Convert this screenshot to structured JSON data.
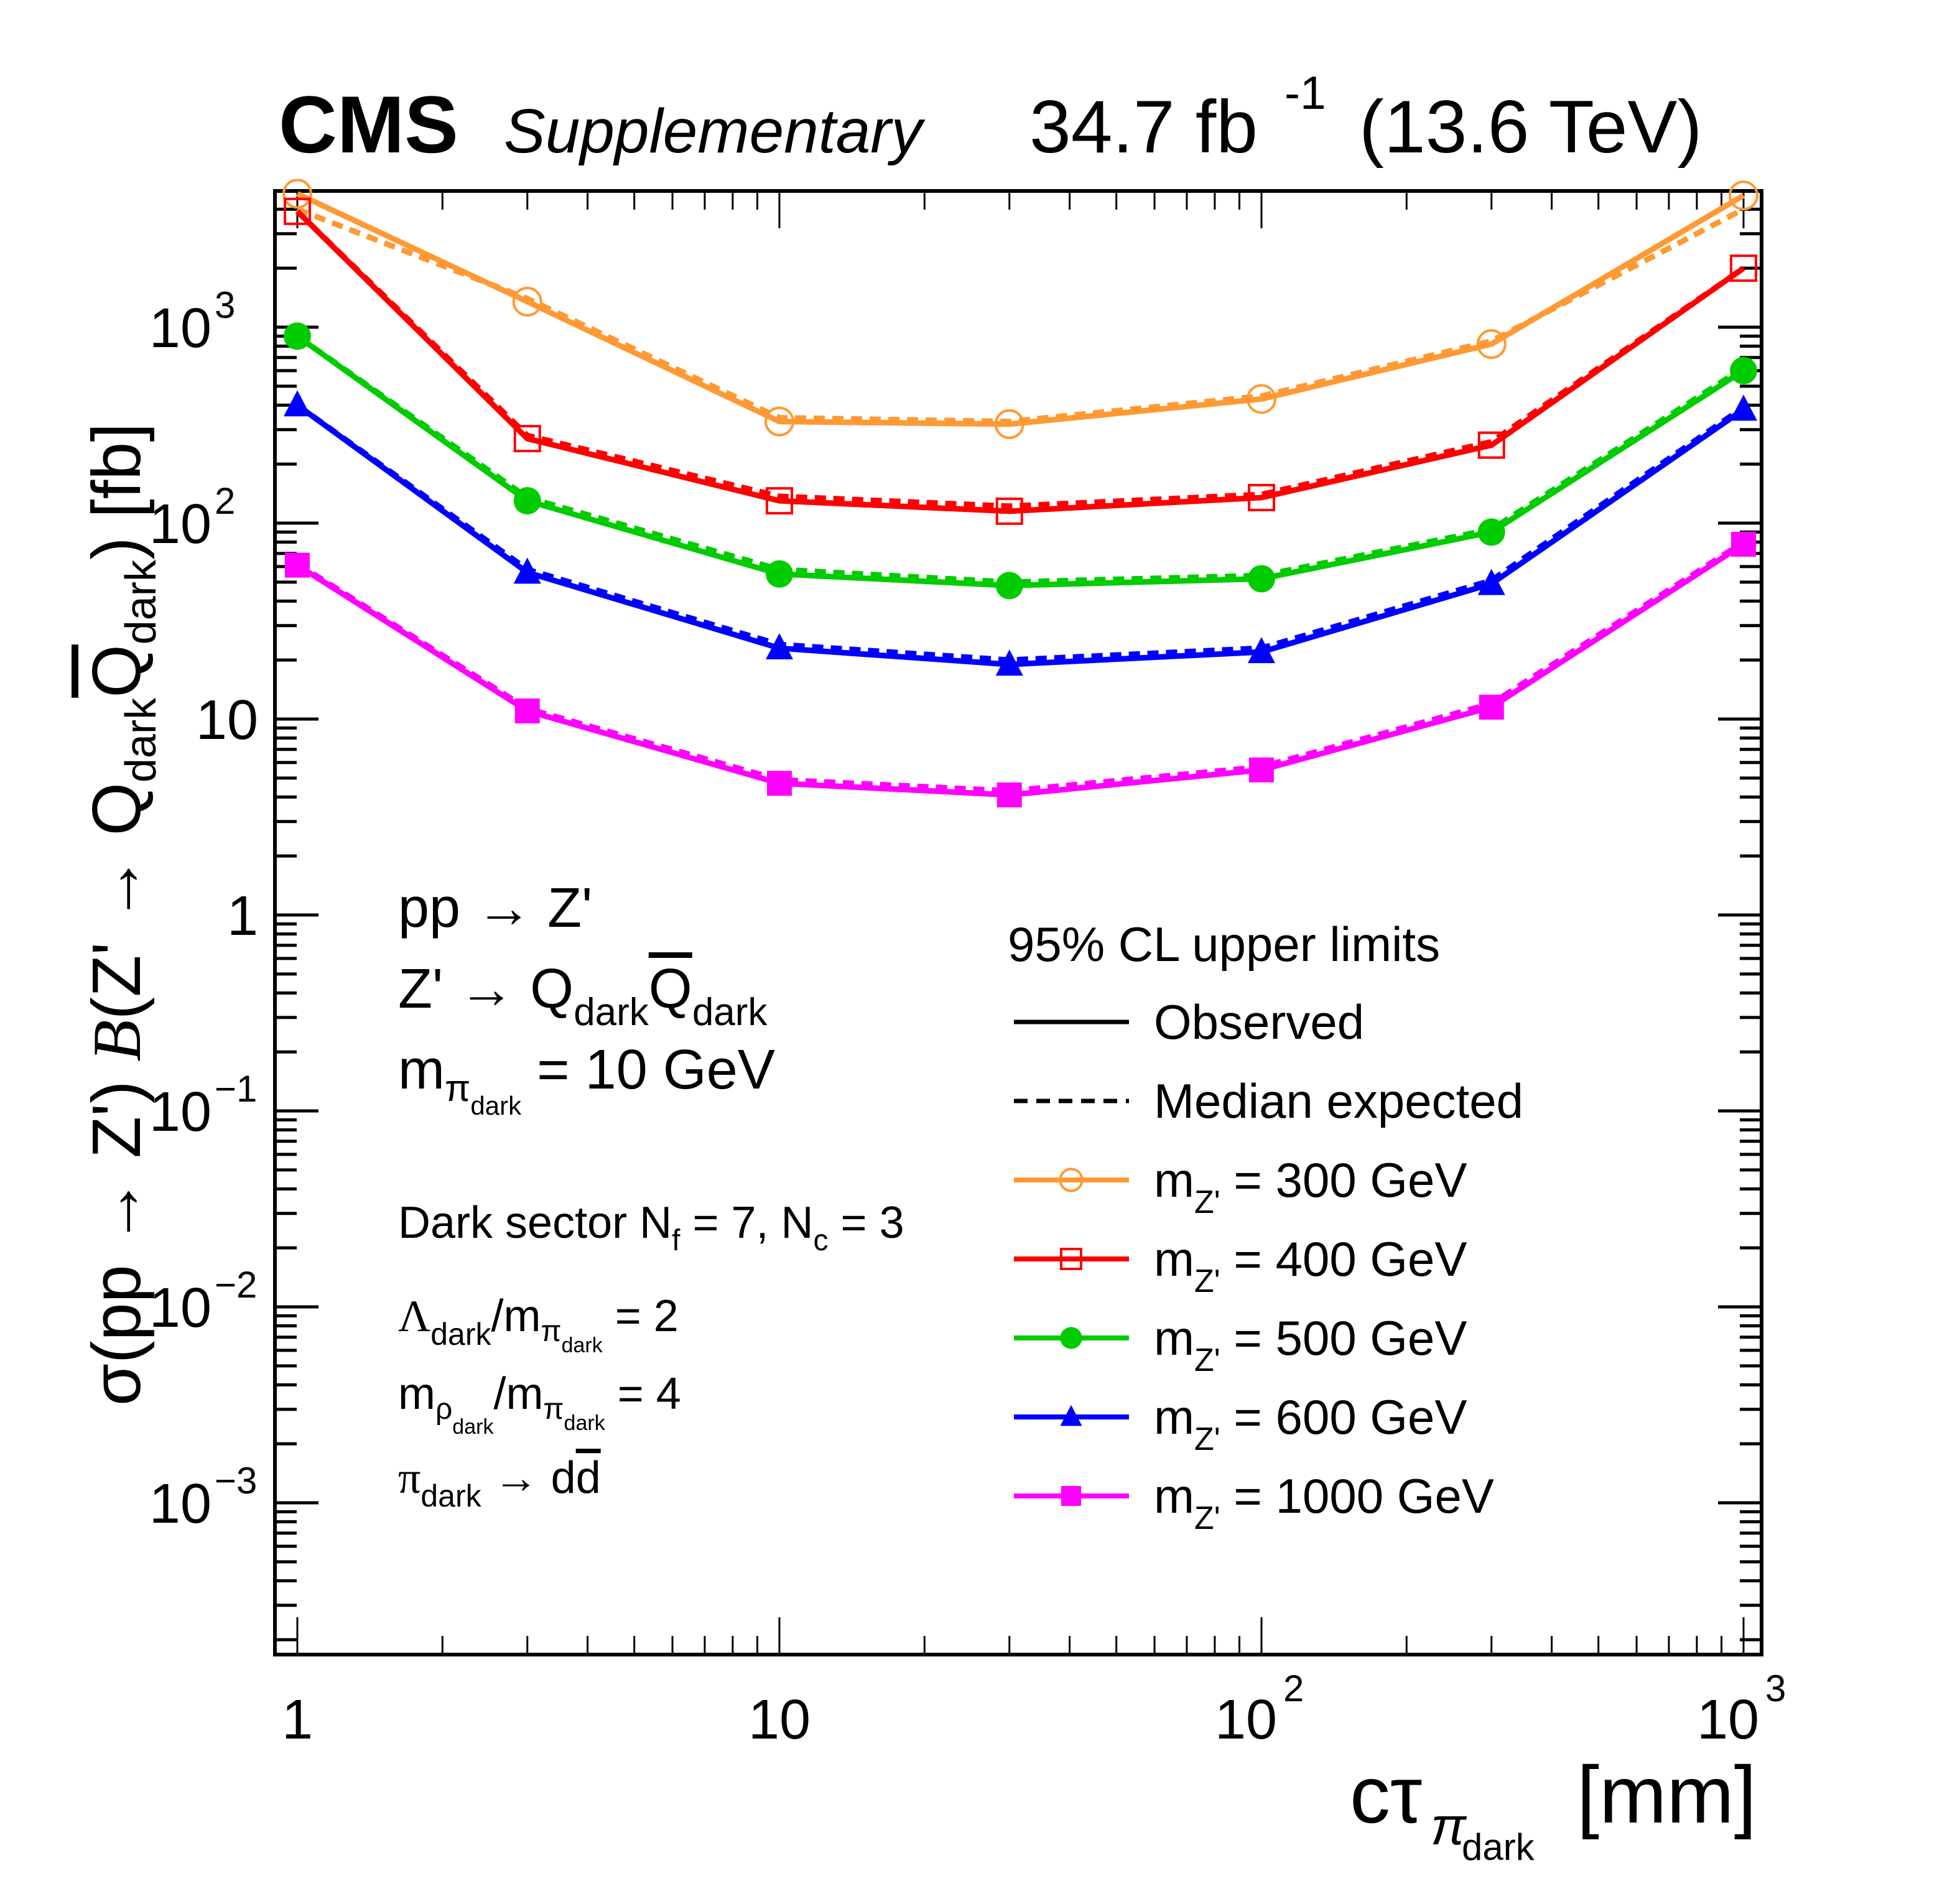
{
  "header": {
    "experiment": "CMS",
    "tag": "Supplementary",
    "lumi": "34.7 fb",
    "lumi_exp": "-1",
    "energy": "(13.6 TeV)"
  },
  "annotations": {
    "process1": "pp → Z'",
    "process2_main": "Z' → Q",
    "process2_sub1": "dark",
    "process2_qbar": "Q",
    "process2_sub2": "dark",
    "mass_main": "m",
    "mass_sub": "π",
    "mass_subsub": "dark",
    "mass_value": "= 10 GeV",
    "sector_text": "Dark sector N",
    "sector_nf_sub": "f",
    "sector_nf_val": " = 7,  N",
    "sector_nc_sub": "c",
    "sector_nc_val": " = 3",
    "lambda_main": "Λ",
    "lambda_sub": "dark",
    "lambda_slash": "/m",
    "lambda_pi": "π",
    "lambda_pisub": "dark",
    "lambda_val": " = 2",
    "rho_main": "m",
    "rho_sub": "ρ",
    "rho_subsub": "dark",
    "rho_slash": "/m",
    "rho_pi": "π",
    "rho_pisub": "dark",
    "rho_val": " = 4",
    "decay_main": "π",
    "decay_sub": "dark",
    "decay_arrow": " → d",
    "decay_dbar": "d"
  },
  "chart_data": {
    "type": "line",
    "title": "",
    "xlabel": "cτ_{π_dark} [mm]",
    "ylabel": "σ(pp → Z') B(Z' → Q_dark Q̄_dark) [fb]",
    "xscale": "log",
    "yscale": "log",
    "xlim": [
      0.95,
      1080
    ],
    "ylim": [
      0.0002,
      5000
    ],
    "x_ticks": [
      {
        "value": 1,
        "label": "1",
        "exp": ""
      },
      {
        "value": 10,
        "label": "10",
        "exp": ""
      },
      {
        "value": 100,
        "label": "10",
        "exp": "2"
      },
      {
        "value": 1000,
        "label": "10",
        "exp": "3"
      }
    ],
    "y_ticks": [
      {
        "value": 1000,
        "label": "10",
        "exp": "3"
      },
      {
        "value": 100,
        "label": "10",
        "exp": "2"
      },
      {
        "value": 10,
        "label": "10",
        "exp": ""
      },
      {
        "value": 1,
        "label": "1",
        "exp": ""
      },
      {
        "value": 0.1,
        "label": "10",
        "exp": "−1"
      },
      {
        "value": 0.01,
        "label": "10",
        "exp": "−2"
      },
      {
        "value": 0.001,
        "label": "10",
        "exp": "−3"
      }
    ],
    "x": [
      1,
      3,
      10,
      30,
      100,
      300,
      1000
    ],
    "legend": {
      "title": "95% CL upper limits",
      "observed_label": "Observed",
      "expected_label": "Median expected",
      "placement": "bottom-right"
    },
    "series": [
      {
        "name": "m_Z' = 300 GeV",
        "label_main": "m",
        "label_sub": "Z'",
        "label_val": " = 300 GeV",
        "color": "#ff9933",
        "marker": "open-circle",
        "observed": [
          4800,
          1350,
          330,
          320,
          430,
          820,
          4700
        ],
        "expected": [
          4000,
          1400,
          345,
          330,
          445,
          850,
          4000
        ]
      },
      {
        "name": "m_Z' = 400 GeV",
        "label_main": "m",
        "label_sub": "Z'",
        "label_val": " = 400 GeV",
        "color": "#ff0000",
        "marker": "open-square",
        "observed": [
          3900,
          270,
          130,
          115,
          135,
          250,
          2000
        ],
        "expected": [
          3900,
          280,
          137,
          122,
          140,
          260,
          2000
        ]
      },
      {
        "name": "m_Z' = 500 GeV",
        "label_main": "m",
        "label_sub": "Z'",
        "label_val": " = 500 GeV",
        "color": "#00cc00",
        "marker": "filled-circle",
        "observed": [
          900,
          130,
          55,
          48,
          52,
          90,
          600
        ],
        "expected": [
          900,
          135,
          58,
          50,
          54,
          93,
          620
        ]
      },
      {
        "name": "m_Z' = 600 GeV",
        "label_main": "m",
        "label_sub": "Z'",
        "label_val": " = 600 GeV",
        "color": "#0000ff",
        "marker": "filled-triangle",
        "observed": [
          400,
          56,
          23,
          19,
          22,
          49,
          380
        ],
        "expected": [
          400,
          58,
          24,
          20,
          23,
          51,
          390
        ]
      },
      {
        "name": "m_Z' = 1000 GeV",
        "label_main": "m",
        "label_sub": "Z'",
        "label_val": " = 1000 GeV",
        "color": "#ff00ff",
        "marker": "filled-square",
        "observed": [
          61,
          11,
          4.7,
          4.1,
          5.5,
          11.5,
          78
        ],
        "expected": [
          62,
          11.3,
          4.9,
          4.3,
          5.7,
          12,
          80
        ]
      }
    ]
  }
}
